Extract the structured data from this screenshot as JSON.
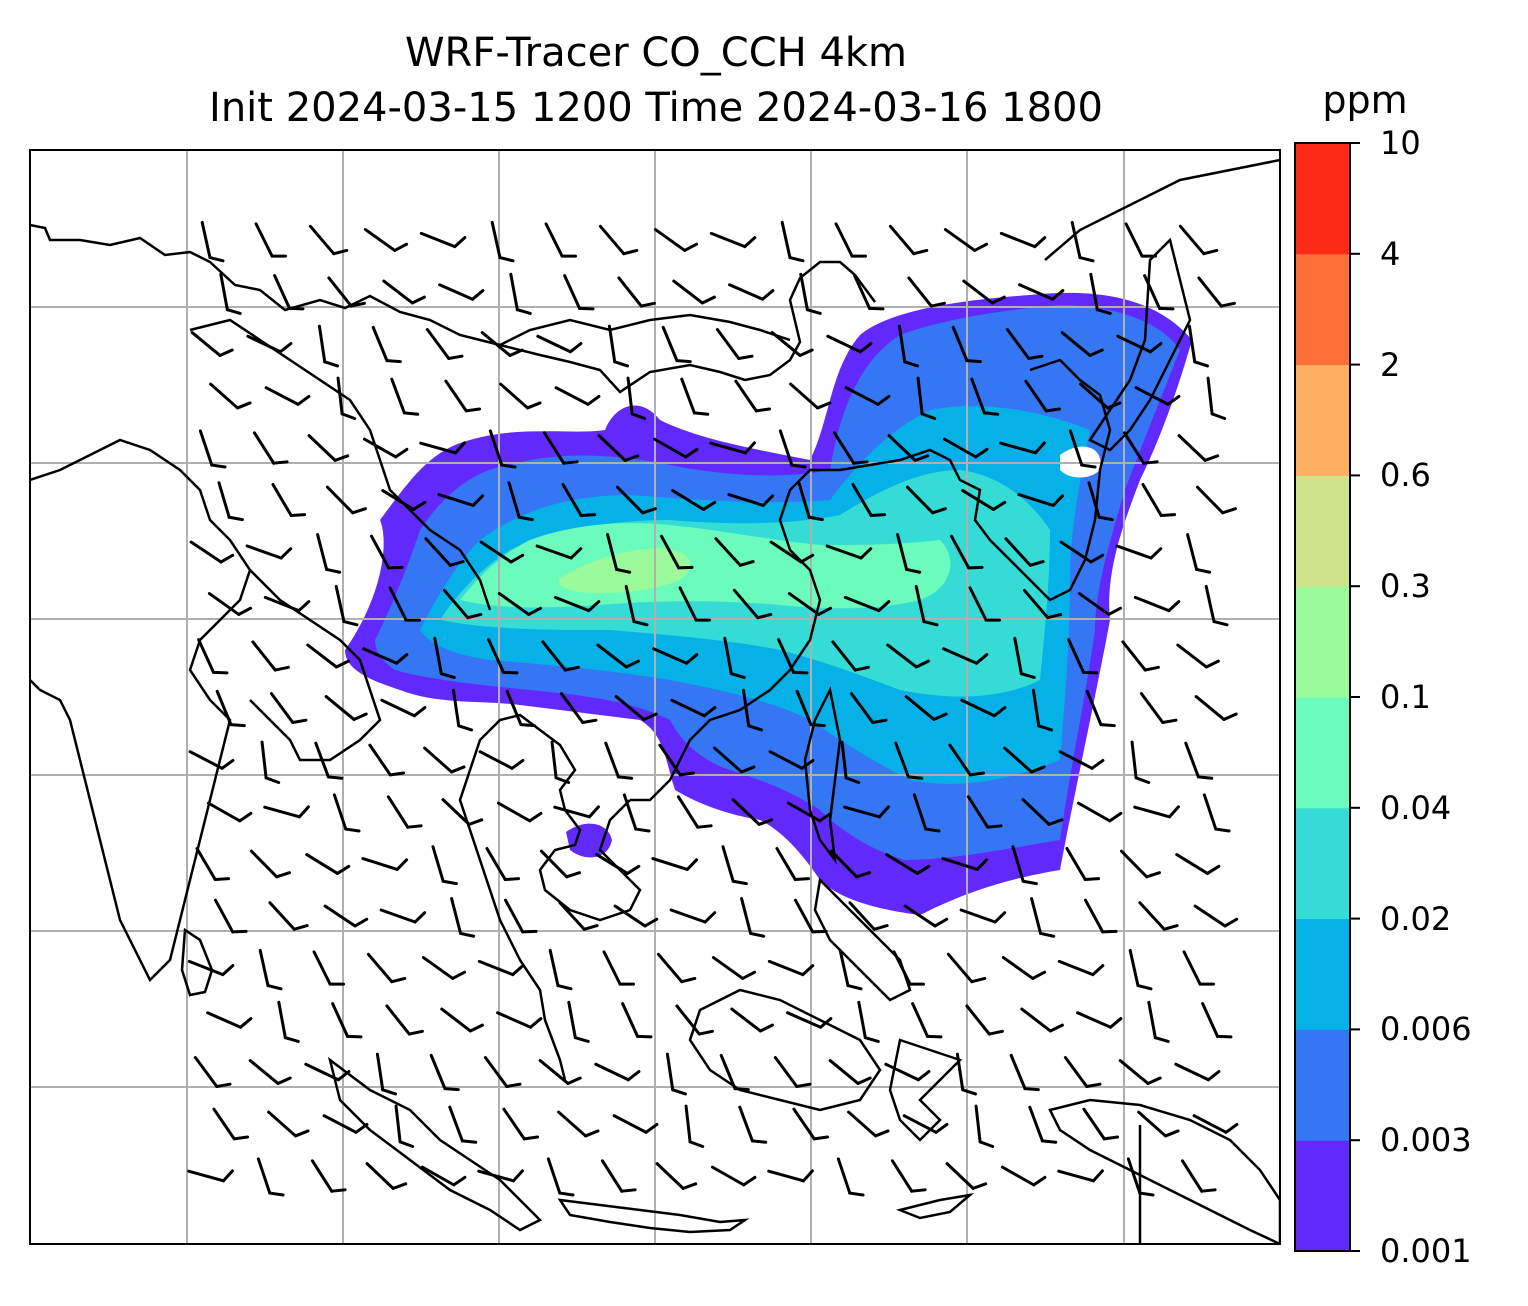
{
  "title": {
    "line1": "WRF-Tracer CO_CCH 4km",
    "line2": "Init 2024-03-15 1200 Time 2024-03-16 1800"
  },
  "colorbar": {
    "unit": "ppm",
    "tick_labels": [
      "0.001",
      "0.003",
      "0.006",
      "0.02",
      "0.04",
      "0.1",
      "0.3",
      "0.6",
      "2",
      "4",
      "10"
    ],
    "colors": [
      "#6129fb",
      "#3576f5",
      "#05b1e7",
      "#35dbd5",
      "#6afbbd",
      "#9bfb9a",
      "#cfe38b",
      "#fdb061",
      "#ff7038",
      "#ff2a15"
    ]
  },
  "map": {
    "gridlines": true,
    "features": [
      "coastlines",
      "country-borders",
      "wind-barbs",
      "tracer-concentration"
    ],
    "colors": {
      "grid": "#b0b0b0",
      "coast": "#000000",
      "barb": "#000000"
    }
  }
}
